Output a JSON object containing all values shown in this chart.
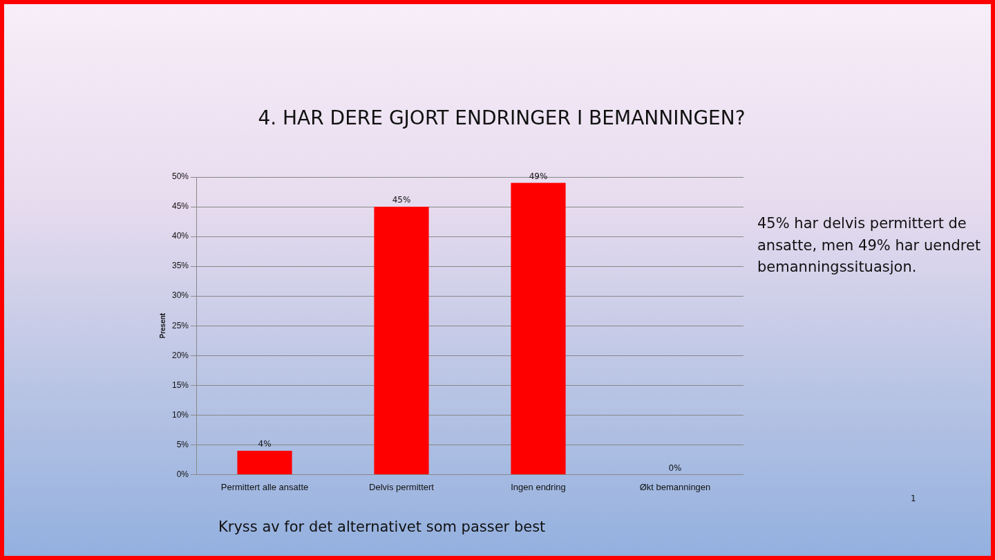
{
  "chart_data": {
    "type": "bar",
    "title": "4. HAR DERE GJORT ENDRINGER I BEMANNINGEN?",
    "ylabel": "Present",
    "categories": [
      "Permittert alle ansatte",
      "Delvis permittert",
      "Ingen endring",
      "Økt bemanningen"
    ],
    "values": [
      4,
      45,
      49,
      0
    ],
    "color": "#ff0000",
    "value_labels": [
      "4%",
      "45%",
      "49%",
      "0%"
    ],
    "ylim": [
      0,
      50
    ],
    "yticks": [
      {
        "value": 0,
        "label": "0%"
      },
      {
        "value": 5,
        "label": "5%"
      },
      {
        "value": 10,
        "label": "10%"
      },
      {
        "value": 15,
        "label": "15%"
      },
      {
        "value": 20,
        "label": "20%"
      },
      {
        "value": 25,
        "label": "25%"
      },
      {
        "value": 30,
        "label": "30%"
      },
      {
        "value": 35,
        "label": "35%"
      },
      {
        "value": 40,
        "label": "40%"
      },
      {
        "value": 45,
        "label": "45%"
      },
      {
        "value": 50,
        "label": "50%"
      }
    ],
    "grid": "y",
    "legend": false,
    "annotations": [
      "45% har delvis permittert de ansatte, men 49% har uendret bemanningssituasjon.",
      "Kryss av for det alternativet som passer best",
      "1"
    ]
  }
}
